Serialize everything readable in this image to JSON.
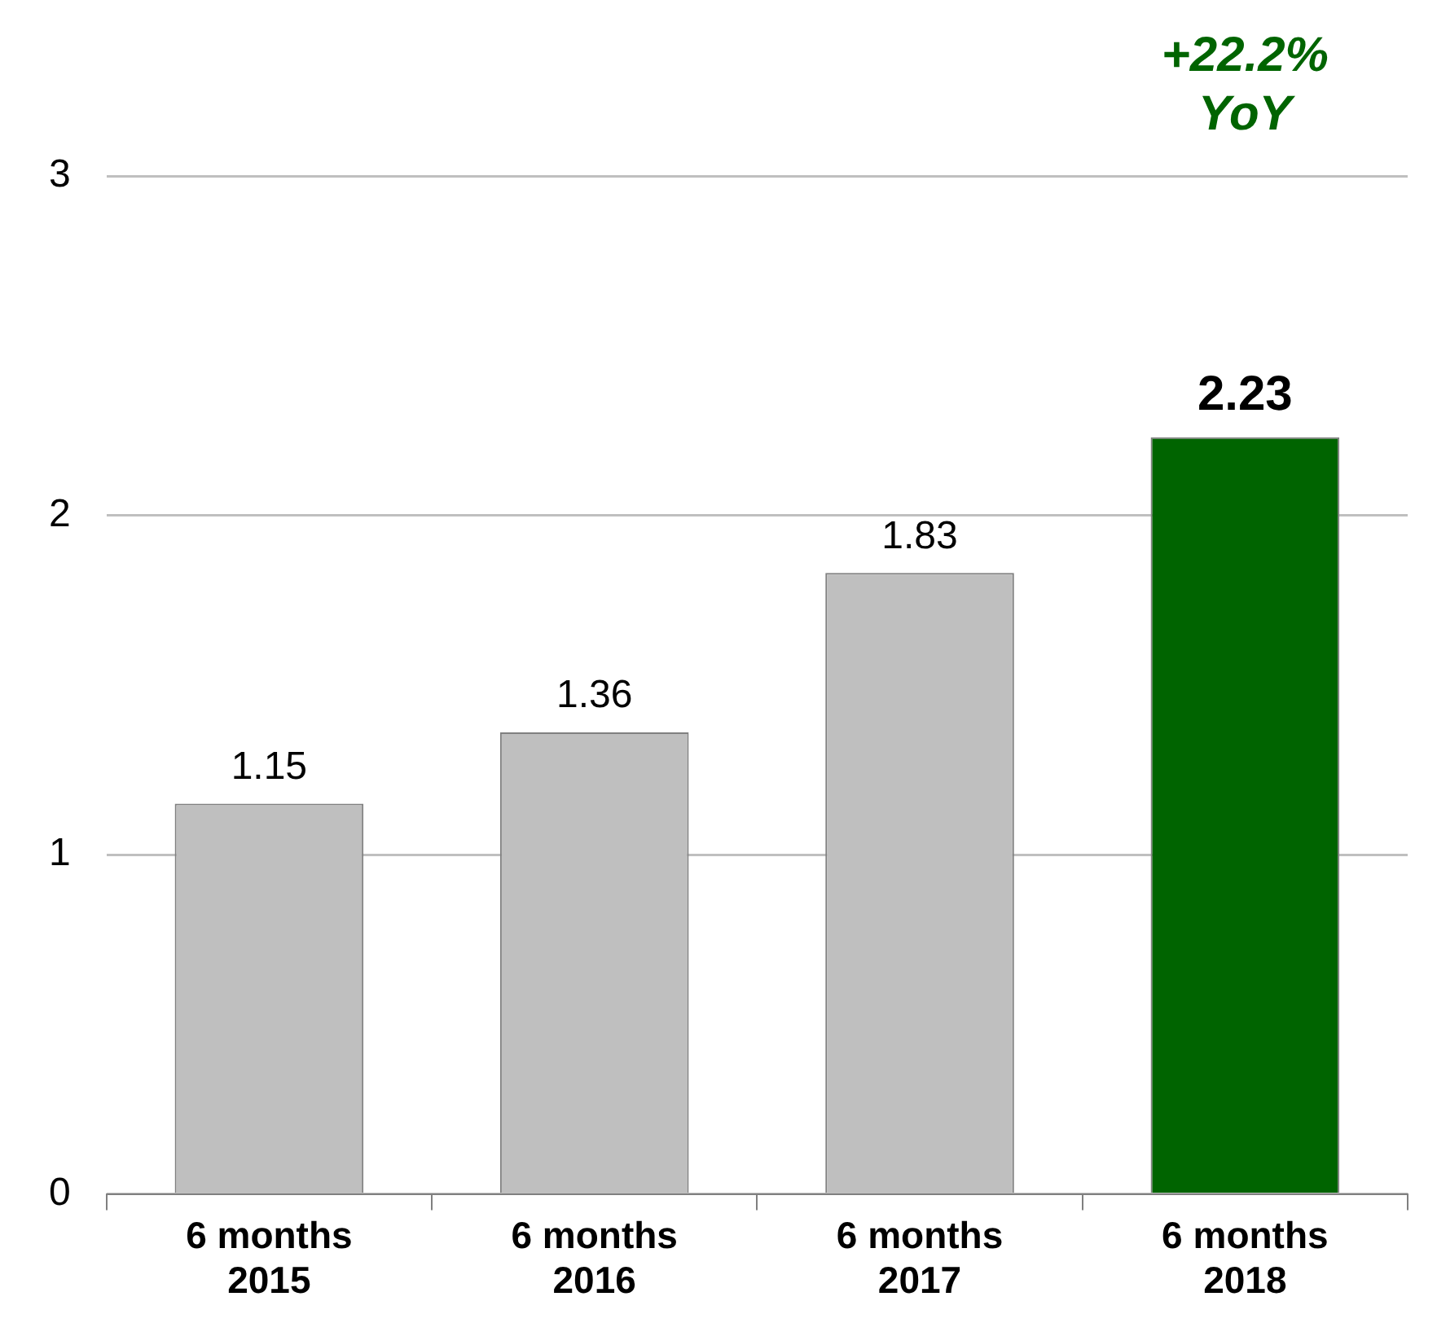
{
  "chart_data": {
    "type": "bar",
    "categories": [
      "6 months\n2015",
      "6 months\n2016",
      "6 months\n2017",
      "6 months\n2018"
    ],
    "values": [
      1.15,
      1.36,
      1.83,
      2.23
    ],
    "colors": [
      "#bfbfbf",
      "#bfbfbf",
      "#bfbfbf",
      "#006400"
    ],
    "ylim": [
      0,
      3
    ],
    "yticks": [
      0,
      1,
      2,
      3
    ],
    "grid": "y",
    "data_labels": true,
    "annotations": [
      "+22.2%\nYoY"
    ]
  }
}
